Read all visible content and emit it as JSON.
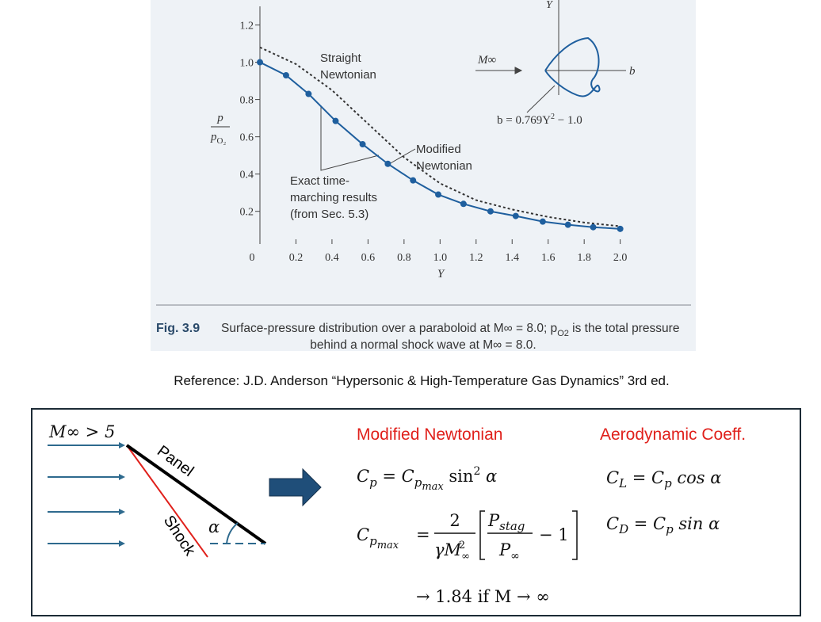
{
  "chart_data": {
    "type": "line",
    "ylabel": {
      "num": "p",
      "den": "p",
      "den_sub": "O₂"
    },
    "xlabel": "Y",
    "xlim": [
      0,
      2.05
    ],
    "ylim": [
      0.05,
      1.3
    ],
    "xticks": [
      0,
      0.2,
      0.4,
      0.6,
      0.8,
      {
        "value": 1,
        "label": "1.0"
      },
      1.2,
      1.4,
      1.6,
      1.8,
      {
        "value": 2,
        "label": "2.0"
      }
    ],
    "yticks": [
      0.2,
      0.4,
      0.6,
      0.8,
      {
        "value": 1,
        "label": "1.0"
      },
      1.2
    ],
    "series": [
      {
        "name": "Straight Newtonian",
        "color": "#333333",
        "mode": "line",
        "dash": true,
        "x": [
          0,
          0.2,
          0.4,
          0.6,
          0.8,
          1,
          1.2,
          1.4,
          1.6,
          1.8,
          2
        ],
        "values": [
          1.08,
          0.99,
          0.85,
          0.67,
          0.49,
          0.35,
          0.26,
          0.21,
          0.17,
          0.14,
          0.12
        ]
      },
      {
        "name": "Modified Newtonian",
        "color": "#1f5f9e",
        "mode": "line",
        "dash": false,
        "x": [
          0,
          0.145,
          0.27,
          0.42,
          0.57,
          0.71,
          0.85,
          0.99,
          1.13,
          1.28,
          1.42,
          1.57,
          1.71,
          1.85,
          2
        ],
        "values": [
          1.0,
          0.93,
          0.83,
          0.685,
          0.56,
          0.455,
          0.366,
          0.29,
          0.24,
          0.2,
          0.175,
          0.145,
          0.128,
          0.115,
          0.106
        ]
      },
      {
        "name": "Exact time-marching results (from Sec. 5.3)",
        "color": "#1f5f9e",
        "mode": "markers",
        "dash": false,
        "x": [
          0,
          0.145,
          0.27,
          0.42,
          0.57,
          0.71,
          0.85,
          0.99,
          1.13,
          1.28,
          1.42,
          1.57,
          1.71,
          1.85,
          2
        ],
        "values": [
          1.0,
          0.93,
          0.83,
          0.685,
          0.56,
          0.455,
          0.366,
          0.29,
          0.24,
          0.2,
          0.175,
          0.145,
          0.128,
          0.115,
          0.106
        ]
      }
    ]
  },
  "inset": {
    "mach": "M∞",
    "y_axis": "Y",
    "b_axis": "b",
    "equation": [
      "b = 0.769Y",
      "2",
      " − 1.0"
    ]
  },
  "caption": {
    "label": "Fig. 3.9",
    "line1": [
      "Surface-pressure distribution over a paraboloid at M∞ = 8.0; p",
      "O2",
      " is the total pressure"
    ],
    "line2": "behind a normal shock wave at M∞ = 8.0."
  },
  "reference": "Reference: J.D. Anderson “Hypersonic & High-Temperature Gas Dynamics” 3rd ed.",
  "diagram": {
    "mach": "M∞ > 5",
    "panel": "Panel",
    "shock": "Shock",
    "angle": "α"
  },
  "formulas": {
    "heading_left": "Modified Newtonian",
    "heading_right": "Aerodynamic Coeff.",
    "cp": [
      "C",
      "p",
      " = C",
      "p",
      "max",
      " sin",
      "2",
      " α"
    ],
    "cpmax": {
      "lhs": [
        "C",
        "p",
        "max"
      ],
      "eq": "=",
      "num": "2",
      "den": [
        "γM",
        "∞",
        "2"
      ],
      "bnum": [
        "P",
        "stag"
      ],
      "bden": [
        "P",
        "∞"
      ],
      "minus": "− 1"
    },
    "limit": "→ 1.84 if M → ∞",
    "cl": [
      "C",
      "L",
      " = C",
      "p",
      " cos α"
    ],
    "cd": [
      "C",
      "D",
      " = C",
      "p",
      " sin α"
    ]
  }
}
